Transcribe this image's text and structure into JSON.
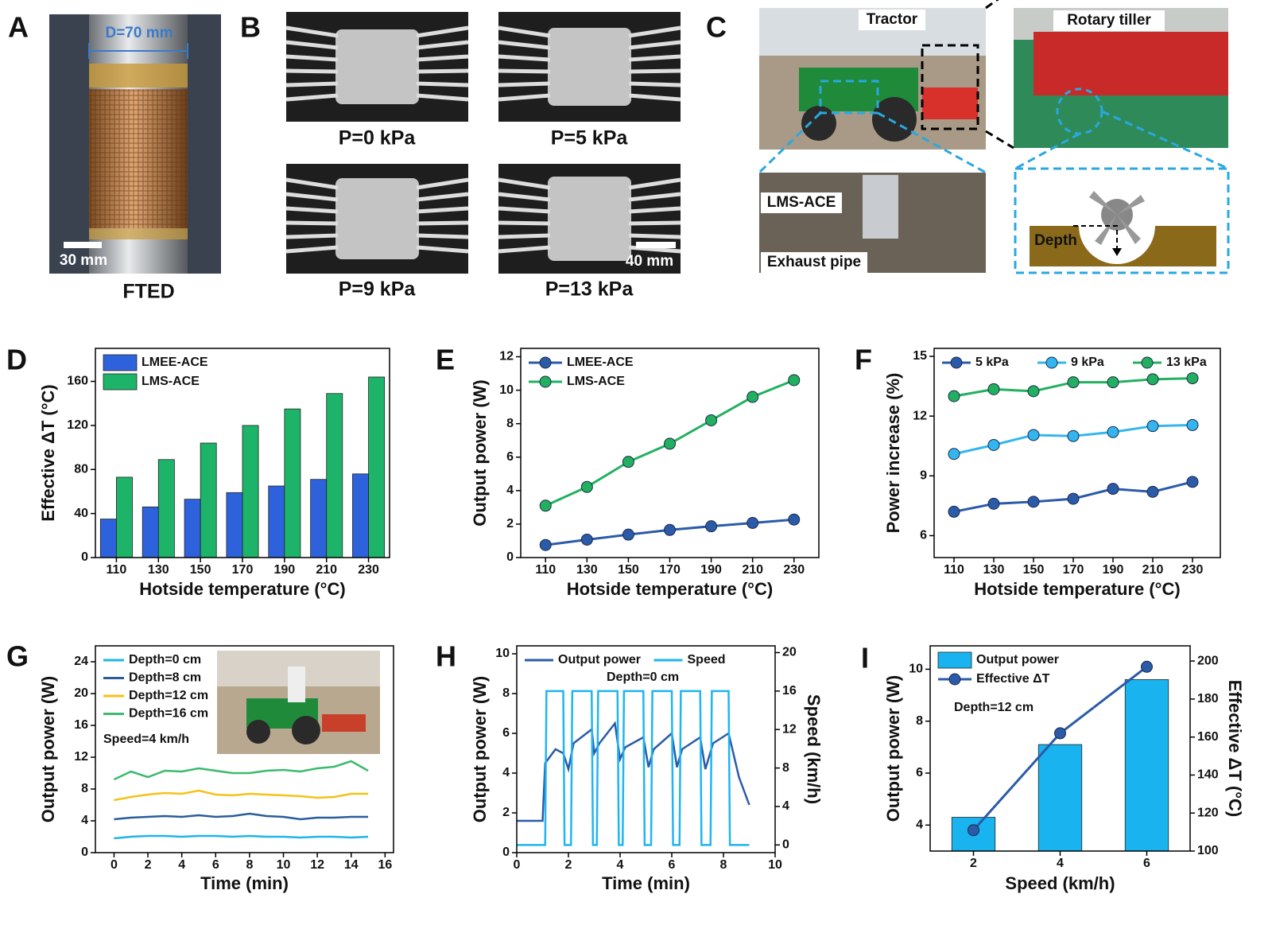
{
  "photos": [
    {
      "panel": "A",
      "scale_top": "D=70 mm",
      "scale_bar": "30 mm",
      "caption": "FTED"
    },
    {
      "panel": "B",
      "captions": [
        "P=0 kPa",
        "P=5 kPa",
        "P=9 kPa",
        "P=13 kPa"
      ],
      "scale_bar": "40 mm"
    },
    {
      "panel": "C",
      "labels": [
        "Tractor",
        "Rotary tiller",
        "LMS-ACE",
        "Exhaust pipe",
        "Depth"
      ]
    }
  ],
  "chart_data": [
    {
      "panel": "D",
      "type": "bar",
      "xlabel": "Hotside temperature (°C)",
      "ylabel": "Effective ΔT (°C)",
      "categories": [
        110,
        130,
        150,
        170,
        190,
        210,
        230
      ],
      "series": [
        {
          "name": "LMEE-ACE",
          "color": "#2e62dc",
          "values": [
            35,
            46,
            53,
            59,
            65,
            71,
            76
          ]
        },
        {
          "name": "LMS-ACE",
          "color": "#1db46a",
          "values": [
            73,
            89,
            104,
            120,
            135,
            149,
            164
          ]
        }
      ],
      "ylim": [
        0,
        190
      ],
      "yticks": [
        0,
        40,
        80,
        120,
        160
      ],
      "legend": "upper left"
    },
    {
      "panel": "E",
      "type": "line",
      "markers": true,
      "xlabel": "Hotside temperature (°C)",
      "ylabel": "Output power (W)",
      "x": [
        110,
        130,
        150,
        170,
        190,
        210,
        230
      ],
      "series": [
        {
          "name": "LMEE-ACE",
          "color": "#2b5ba8",
          "values": [
            0.75,
            1.07,
            1.37,
            1.65,
            1.87,
            2.07,
            2.27
          ]
        },
        {
          "name": "LMS-ACE",
          "color": "#22b060",
          "values": [
            3.1,
            4.22,
            5.72,
            6.8,
            8.2,
            9.6,
            10.6
          ]
        }
      ],
      "xlim": [
        98,
        242
      ],
      "xticks": [
        110,
        130,
        150,
        170,
        190,
        210,
        230
      ],
      "ylim": [
        0,
        12.5
      ],
      "yticks": [
        0,
        2,
        4,
        6,
        8,
        10,
        12
      ],
      "legend": "upper left"
    },
    {
      "panel": "F",
      "type": "line",
      "markers": true,
      "xlabel": "Hotside temperature (°C)",
      "ylabel": "Power increase (%)",
      "x": [
        110,
        130,
        150,
        170,
        190,
        210,
        230
      ],
      "series": [
        {
          "name": "5 kPa",
          "color": "#2b5ba8",
          "values": [
            7.2,
            7.6,
            7.7,
            7.85,
            8.35,
            8.2,
            8.7
          ]
        },
        {
          "name": "9 kPa",
          "color": "#33b6ef",
          "values": [
            10.1,
            10.55,
            11.05,
            11.0,
            11.2,
            11.5,
            11.55
          ]
        },
        {
          "name": "13 kPa",
          "color": "#22b060",
          "values": [
            13.0,
            13.35,
            13.25,
            13.7,
            13.7,
            13.85,
            13.9
          ]
        }
      ],
      "xlim": [
        100,
        244
      ],
      "xticks": [
        110,
        130,
        150,
        170,
        190,
        210,
        230
      ],
      "ylim": [
        4.9,
        15.4
      ],
      "yticks": [
        6,
        9,
        12,
        15
      ],
      "legend": "upper"
    },
    {
      "panel": "G",
      "type": "line",
      "xlabel": "Time (min)",
      "ylabel": "Output power (W)",
      "annotation": "Speed=4 km/h",
      "x": [
        0,
        1,
        2,
        3,
        4,
        5,
        6,
        7,
        8,
        9,
        10,
        11,
        12,
        13,
        14,
        15
      ],
      "series": [
        {
          "name": "Depth=0 cm",
          "color": "#1fb5e8",
          "values": [
            1.8,
            2.0,
            2.1,
            2.1,
            2.0,
            2.1,
            2.1,
            2.0,
            2.1,
            2.0,
            2.0,
            1.9,
            2.0,
            2.0,
            1.9,
            2.0
          ]
        },
        {
          "name": "Depth=8 cm",
          "color": "#2a5d9a",
          "values": [
            4.2,
            4.4,
            4.5,
            4.6,
            4.5,
            4.7,
            4.5,
            4.6,
            4.9,
            4.6,
            4.5,
            4.2,
            4.4,
            4.4,
            4.5,
            4.5
          ]
        },
        {
          "name": "Depth=12 cm",
          "color": "#f5c218",
          "values": [
            6.6,
            7.0,
            7.3,
            7.5,
            7.4,
            7.8,
            7.3,
            7.2,
            7.4,
            7.3,
            7.2,
            7.1,
            6.9,
            7.0,
            7.4,
            7.4
          ]
        },
        {
          "name": "Depth=16 cm",
          "color": "#3cba6f",
          "values": [
            9.2,
            10.2,
            9.5,
            10.3,
            10.2,
            10.6,
            10.3,
            10.0,
            10.0,
            10.3,
            10.4,
            10.2,
            10.6,
            10.8,
            11.5,
            10.3
          ]
        }
      ],
      "xlim": [
        -1.1,
        16.5
      ],
      "xticks": [
        0,
        2,
        4,
        6,
        8,
        10,
        12,
        14,
        16
      ],
      "ylim": [
        0,
        26
      ],
      "yticks": [
        0,
        4,
        8,
        12,
        16,
        20,
        24
      ],
      "legend": "upper left"
    },
    {
      "panel": "H",
      "type": "line",
      "xlabel": "Time (min)",
      "ylabel": "Output power (W)",
      "y2label": "Speed (km/h)",
      "annotation": "Depth=0 cm",
      "series": [
        {
          "name": "Output power",
          "color": "#2b5ba8",
          "x": [
            0,
            1.0,
            1.1,
            1.5,
            1.8,
            2.0,
            2.2,
            2.9,
            3.0,
            3.2,
            3.8,
            4.0,
            4.2,
            4.9,
            5.1,
            5.3,
            6.0,
            6.2,
            6.4,
            7.1,
            7.3,
            7.6,
            8.2,
            8.6,
            9.0
          ],
          "values": [
            1.6,
            1.6,
            4.5,
            5.2,
            5.0,
            4.2,
            5.5,
            6.2,
            5.0,
            5.5,
            6.5,
            4.7,
            5.3,
            5.8,
            4.3,
            5.2,
            6.0,
            4.3,
            5.2,
            5.8,
            4.2,
            5.5,
            6.0,
            3.8,
            2.4
          ]
        },
        {
          "name": "Speed",
          "color": "#1fb5f0",
          "axis": "y2",
          "x": [
            0,
            1.1,
            1.15,
            1.8,
            1.85,
            2.1,
            2.15,
            2.9,
            2.95,
            3.1,
            3.15,
            3.9,
            3.95,
            4.1,
            4.15,
            4.9,
            4.95,
            5.2,
            5.25,
            6.0,
            6.05,
            6.3,
            6.35,
            7.1,
            7.15,
            7.5,
            7.55,
            8.2,
            8.25,
            9.0
          ],
          "values": [
            0,
            0,
            16,
            16,
            0,
            0,
            16,
            16,
            0,
            0,
            16,
            16,
            0,
            0,
            16,
            16,
            0,
            0,
            16,
            16,
            0,
            0,
            16,
            16,
            0,
            0,
            16,
            16,
            0,
            0
          ]
        }
      ],
      "xlim": [
        0,
        10
      ],
      "xticks": [
        0,
        2,
        4,
        6,
        8,
        10
      ],
      "ylim": [
        0,
        10.4
      ],
      "yticks": [
        0,
        2,
        4,
        6,
        8,
        10
      ],
      "y2lim": [
        -0.8,
        20.7
      ],
      "y2ticks": [
        0,
        4,
        8,
        12,
        16,
        20
      ],
      "legend": "upper"
    },
    {
      "panel": "I",
      "type": "bar",
      "markers": true,
      "xlabel": "Speed (km/h)",
      "ylabel": "Output power (W)",
      "y2label": "Effective ΔT (°C)",
      "annotation": "Depth=12 cm",
      "x": [
        2,
        4,
        6
      ],
      "series": [
        {
          "name": "Output power",
          "type": "bar",
          "color": "#19b4f0",
          "values": [
            4.3,
            7.1,
            9.6
          ]
        },
        {
          "name": "Effective ΔT",
          "type": "line",
          "axis": "y2",
          "color": "#2b5ba8",
          "values": [
            111,
            162,
            197
          ]
        }
      ],
      "xlim": [
        1,
        7
      ],
      "xticks": [
        2,
        4,
        6
      ],
      "ylim": [
        3,
        10.9
      ],
      "yticks": [
        4,
        6,
        8,
        10
      ],
      "y2lim": [
        100,
        208
      ],
      "y2ticks": [
        100,
        120,
        140,
        160,
        180,
        200
      ],
      "legend": "upper left"
    }
  ]
}
